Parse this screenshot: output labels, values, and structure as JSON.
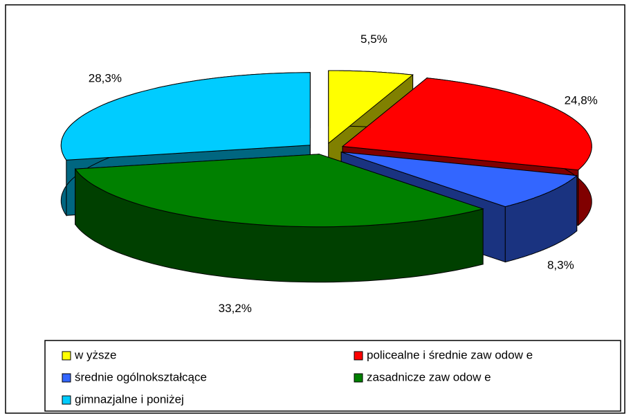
{
  "chart_data": {
    "type": "pie",
    "categories": [
      "w yższe",
      "policealne i średnie zaw odow e",
      "średnie ogólnokształcące",
      "zasadnicze zaw odow e",
      "gimnazjalne i poniżej"
    ],
    "values": [
      5.5,
      24.8,
      8.3,
      33.2,
      28.3
    ],
    "value_labels": [
      "5,5%",
      "24,8%",
      "8,3%",
      "33,2%",
      "28,3%"
    ],
    "colors": [
      "#ffff00",
      "#ff0000",
      "#3366ff",
      "#008000",
      "#00ccff"
    ],
    "legend": "bottom"
  }
}
